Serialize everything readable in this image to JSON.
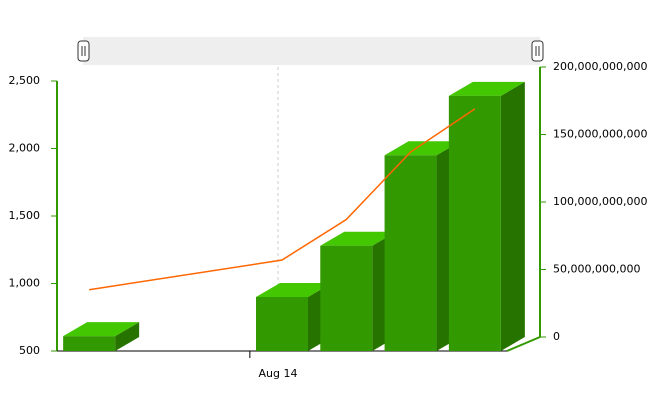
{
  "chart_data": {
    "type": "bar",
    "connect": true,
    "categories": [
      null,
      null,
      null,
      "Aug 14",
      null,
      null,
      null
    ],
    "series": [
      {
        "type": "bar",
        "color": "#339900",
        "values": [
          610,
          null,
          null,
          900,
          1280,
          1950,
          2390
        ]
      },
      {
        "type": "line",
        "axis": "y2",
        "color": "#ff6600",
        "values": [
          35000000000,
          null,
          null,
          57000000000,
          87000000000,
          137000000000,
          169000000000
        ]
      }
    ],
    "ylim": [
      500,
      2500
    ],
    "yticks": [
      500,
      {
        "value": 1000,
        "label": "1,000"
      },
      {
        "value": 1500,
        "label": "1,500"
      },
      {
        "value": 2000,
        "label": "2,000"
      },
      {
        "value": 2500,
        "label": "2,500"
      }
    ],
    "y2lim": [
      0,
      200000000000
    ],
    "y2ticks": [
      0,
      {
        "value": 50000000000,
        "label": "50,000,000,000"
      },
      {
        "value": 100000000000,
        "label": "100,000,000,000"
      },
      {
        "value": 150000000000,
        "label": "150,000,000,000"
      },
      {
        "value": 200000000000,
        "label": "200,000,000,000"
      }
    ],
    "axis_color": "#339900"
  }
}
